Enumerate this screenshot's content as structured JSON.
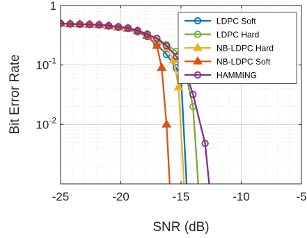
{
  "chart_data": {
    "type": "line",
    "title": "",
    "xlabel": "SNR (dB)",
    "ylabel": "Bit Error Rate",
    "xlim": [
      -25,
      -5
    ],
    "ylim": [
      0.001,
      1
    ],
    "yscale": "log",
    "grid": true,
    "minor_grid": true,
    "legend_position": "top-right",
    "x_ticks": [
      -25,
      -20,
      -15,
      -10,
      -5
    ],
    "x_tick_labels": [
      "-25",
      "-20",
      "-15",
      "-10",
      "-5"
    ],
    "y_ticks": [
      0.01,
      0.1,
      1
    ],
    "y_tick_labels": [
      {
        "base": "10",
        "exp": "-2"
      },
      {
        "base": "10",
        "exp": "-1"
      },
      {
        "base": "1",
        "exp": ""
      }
    ],
    "series": [
      {
        "name": "LDPC Soft",
        "color": "#0072BD",
        "marker": "circle",
        "x": [
          -25,
          -24.2,
          -23.4,
          -22.6,
          -21.8,
          -21,
          -20.2,
          -19.4,
          -18.6,
          -17.8,
          -17,
          -16.2,
          -15.4,
          -15,
          -14.4
        ],
        "y": [
          0.5,
          0.49,
          0.485,
          0.48,
          0.47,
          0.45,
          0.43,
          0.41,
          0.36,
          0.3,
          0.22,
          0.15,
          0.09,
          0.065,
          0.0003
        ]
      },
      {
        "name": "LDPC Hard",
        "color": "#77AC30",
        "marker": "circle",
        "x": [
          -25,
          -24.2,
          -23.4,
          -22.6,
          -21.8,
          -21,
          -20.2,
          -19.4,
          -18.6,
          -17.8,
          -17,
          -16.2,
          -15.4,
          -14.9,
          -14,
          -13.4
        ],
        "y": [
          0.5,
          0.49,
          0.487,
          0.482,
          0.475,
          0.46,
          0.44,
          0.42,
          0.38,
          0.33,
          0.28,
          0.22,
          0.17,
          0.13,
          0.02,
          0.0003
        ]
      },
      {
        "name": "NB-LDPC Hard",
        "color": "#EDB120",
        "marker": "triangle",
        "x": [
          -25,
          -24.2,
          -23.4,
          -22.6,
          -21.8,
          -21,
          -20.2,
          -19.4,
          -18.6,
          -17.8,
          -17,
          -16.2,
          -15.6,
          -15.2,
          -14.6
        ],
        "y": [
          0.5,
          0.49,
          0.485,
          0.48,
          0.47,
          0.45,
          0.43,
          0.41,
          0.37,
          0.32,
          0.26,
          0.19,
          0.12,
          0.042,
          0.0003
        ]
      },
      {
        "name": "NB-LDPC Soft",
        "color": "#D95319",
        "marker": "triangle",
        "x": [
          -25,
          -24.2,
          -23.4,
          -22.6,
          -21.8,
          -21,
          -20.2,
          -19.4,
          -18.6,
          -17.8,
          -17,
          -16.6,
          -16.2,
          -15.8
        ],
        "y": [
          0.5,
          0.49,
          0.485,
          0.48,
          0.47,
          0.45,
          0.43,
          0.41,
          0.37,
          0.31,
          0.21,
          0.09,
          0.01,
          0.0003
        ]
      },
      {
        "name": "HAMMING",
        "color": "#7E2F8E",
        "marker": "circle",
        "x": [
          -25,
          -24.2,
          -23.4,
          -22.6,
          -21.8,
          -21,
          -20.2,
          -19.4,
          -18.6,
          -17.8,
          -17,
          -16.2,
          -15.4,
          -14.8,
          -14,
          -13,
          -12.4
        ],
        "y": [
          0.5,
          0.49,
          0.487,
          0.482,
          0.475,
          0.46,
          0.44,
          0.42,
          0.38,
          0.33,
          0.28,
          0.21,
          0.14,
          0.1,
          0.032,
          0.0048,
          0.0003
        ]
      }
    ]
  }
}
